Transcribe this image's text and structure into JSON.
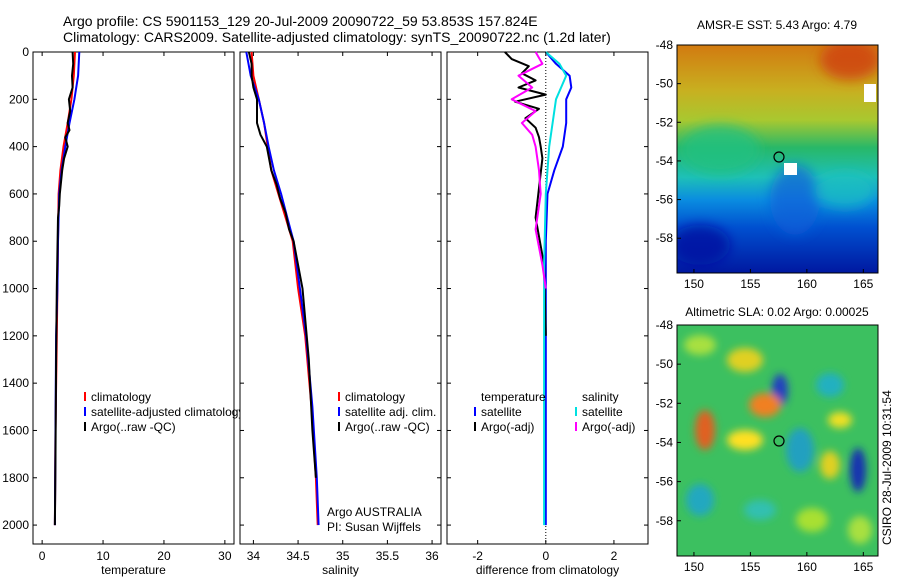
{
  "title": {
    "line1": "Argo profile: CS 5901153_129 20-Jul-2009 20090722_59 53.853S 157.824E",
    "line2": "Climatology: CARS2009. Satellite-adjusted climatology: synTS_20090722.nc (1.2d later)"
  },
  "colors": {
    "climatology": "#ff0000",
    "satellite": "#0000ff",
    "argo": "#000000",
    "sat_salinity": "#00e0e0",
    "argo_adj_salinity": "#ff00ff",
    "zero_line": "#000000"
  },
  "credit": "CSIRO 28-Jul-2009 10:31:54",
  "chart_data": [
    {
      "type": "line",
      "name": "temperature-profile",
      "xlabel": "temperature",
      "xlim": [
        -1.5,
        31.5
      ],
      "xticks": [
        "0",
        "10",
        "20",
        "30"
      ],
      "xtick_values": [
        0,
        10,
        20,
        30
      ],
      "ylim": [
        0,
        2080
      ],
      "yticks": [
        "0",
        "200",
        "400",
        "600",
        "800",
        "1000",
        "1200",
        "1400",
        "1600",
        "1800",
        "2000"
      ],
      "ytick_values": [
        0,
        200,
        400,
        600,
        800,
        1000,
        1200,
        1400,
        1600,
        1800,
        2000
      ],
      "legend": [
        "climatology",
        "satellite-adjusted climatology",
        "Argo(..raw -QC)"
      ],
      "series": [
        {
          "name": "climatology",
          "color": "#ff0000",
          "x": [
            5.4,
            5.2,
            4.8,
            4.2,
            3.5,
            3.0,
            2.7,
            2.6,
            2.5,
            2.4,
            2.2,
            2.1
          ],
          "y": [
            0,
            100,
            200,
            300,
            400,
            500,
            600,
            800,
            1000,
            1200,
            1600,
            2000
          ]
        },
        {
          "name": "satellite",
          "color": "#0000ff",
          "x": [
            6.1,
            5.9,
            5.3,
            4.5,
            3.8,
            3.2,
            2.8,
            2.6,
            2.5,
            2.3,
            2.2,
            2.1
          ],
          "y": [
            0,
            100,
            200,
            300,
            400,
            500,
            600,
            800,
            1000,
            1200,
            1600,
            2000
          ]
        },
        {
          "name": "argo",
          "color": "#000000",
          "x": [
            5.0,
            5.1,
            4.9,
            5.0,
            4.4,
            4.6,
            4.2,
            4.5,
            3.8,
            4.2,
            3.6,
            3.3,
            3.1,
            2.9,
            2.8,
            2.6,
            2.4,
            2.3,
            2.2,
            2.1
          ],
          "y": [
            0,
            50,
            100,
            150,
            200,
            250,
            300,
            330,
            360,
            400,
            450,
            500,
            550,
            600,
            650,
            700,
            1000,
            1300,
            1700,
            2000
          ]
        }
      ]
    },
    {
      "type": "line",
      "name": "salinity-profile",
      "xlabel": "salinity",
      "xlim": [
        33.85,
        36.1
      ],
      "xticks": [
        "34",
        "34.5",
        "35",
        "35.5",
        "36"
      ],
      "xtick_values": [
        34,
        34.5,
        35,
        35.5,
        36
      ],
      "ylim": [
        0,
        2080
      ],
      "legend": [
        "climatology",
        "satellite adj. clim.",
        "Argo(..raw -QC)"
      ],
      "annotation": [
        "Argo AUSTRALIA",
        "PI: Susan Wijffels"
      ],
      "series": [
        {
          "name": "climatology",
          "color": "#ff0000",
          "x": [
            33.98,
            34.0,
            34.06,
            34.12,
            34.16,
            34.2,
            34.28,
            34.36,
            34.44,
            34.5,
            34.58,
            34.65,
            34.7,
            34.72
          ],
          "y": [
            0,
            100,
            200,
            300,
            400,
            500,
            600,
            700,
            800,
            1000,
            1200,
            1500,
            1800,
            2000
          ]
        },
        {
          "name": "satellite",
          "color": "#0000ff",
          "x": [
            33.92,
            33.97,
            34.06,
            34.12,
            34.17,
            34.23,
            34.31,
            34.38,
            34.45,
            34.52,
            34.59,
            34.66,
            34.71,
            34.73
          ],
          "y": [
            0,
            100,
            200,
            300,
            400,
            500,
            600,
            700,
            800,
            1000,
            1200,
            1500,
            1800,
            2000
          ]
        },
        {
          "name": "argo",
          "color": "#000000",
          "x": [
            33.95,
            33.98,
            33.98,
            34.0,
            34.04,
            34.04,
            34.08,
            34.15,
            34.2,
            34.26,
            34.3,
            34.36,
            34.4,
            34.45,
            34.55,
            34.62,
            34.66,
            34.7
          ],
          "y": [
            0,
            50,
            100,
            150,
            200,
            300,
            350,
            400,
            500,
            560,
            620,
            680,
            750,
            800,
            1000,
            1300,
            1600,
            1800
          ]
        }
      ]
    },
    {
      "type": "line",
      "name": "difference-profile",
      "xlabel": "difference from climatology",
      "xlim": [
        -2.9,
        3.0
      ],
      "xticks": [
        "-2",
        "0",
        "2"
      ],
      "xtick_values": [
        -2,
        0,
        2
      ],
      "ylim": [
        0,
        2080
      ],
      "legend_temperature": {
        "header": "temperature",
        "items": [
          "satellite",
          "Argo(-adj)"
        ]
      },
      "legend_salinity": {
        "header": "salinity",
        "items": [
          "satellite",
          "Argo(-adj)"
        ]
      },
      "series": [
        {
          "name": "temperature satellite",
          "color": "#0000ff",
          "x": [
            0.0,
            0.3,
            0.7,
            0.75,
            0.6,
            0.6,
            0.5,
            0.25,
            0.05,
            0.0,
            0.0,
            0.0,
            0.0
          ],
          "y": [
            0,
            50,
            100,
            150,
            200,
            300,
            400,
            500,
            600,
            800,
            1200,
            1600,
            2000
          ]
        },
        {
          "name": "temperature Argo(-adj)",
          "color": "#000000",
          "x": [
            -1.2,
            -1.0,
            -0.5,
            -0.7,
            -0.3,
            -0.8,
            0.0,
            -0.9,
            -0.2,
            -0.6,
            -0.3,
            -0.2,
            -0.15,
            -0.1,
            -0.3,
            -0.05,
            0.0
          ],
          "y": [
            0,
            30,
            60,
            90,
            120,
            150,
            180,
            210,
            240,
            280,
            320,
            360,
            400,
            450,
            700,
            900,
            1200
          ]
        },
        {
          "name": "salinity satellite",
          "color": "#00e0e0",
          "x": [
            0.0,
            0.4,
            0.6,
            0.45,
            0.3,
            0.2,
            0.1,
            0.0,
            -0.05,
            -0.05,
            -0.05
          ],
          "y": [
            0,
            50,
            100,
            150,
            200,
            300,
            400,
            600,
            900,
            1400,
            2000
          ]
        },
        {
          "name": "salinity Argo(-adj)",
          "color": "#ff00ff",
          "x": [
            -0.3,
            -0.1,
            -0.8,
            -0.4,
            -1.0,
            -0.3,
            -0.7,
            -0.4,
            -0.3,
            -0.2,
            -0.15,
            -0.3,
            -0.1,
            0.0
          ],
          "y": [
            0,
            50,
            100,
            150,
            200,
            250,
            300,
            350,
            400,
            500,
            600,
            750,
            900,
            1000
          ]
        }
      ]
    },
    {
      "type": "heatmap",
      "name": "amsr-e-sst-map",
      "title": "AMSR-E SST: 5.43 Argo: 4.79",
      "xlim": [
        148.5,
        166.3
      ],
      "ylim": [
        -59.8,
        -48.0
      ],
      "xticks": [
        "150",
        "155",
        "160",
        "165"
      ],
      "xtick_values": [
        150,
        155,
        160,
        165
      ],
      "yticks": [
        "-48",
        "-50",
        "-52",
        "-54",
        "-56",
        "-58"
      ],
      "ytick_values": [
        -48,
        -50,
        -52,
        -54,
        -56,
        -58
      ],
      "marker": {
        "lon": 157.824,
        "lat": -53.853
      },
      "description": "sea surface temperature field, warm (orange) in the north cooling to blue in the south"
    },
    {
      "type": "heatmap",
      "name": "altimetric-sla-map",
      "title": "Altimetric SLA: 0.02 Argo: 0.00025",
      "xlim": [
        148.5,
        166.3
      ],
      "ylim": [
        -59.8,
        -48.0
      ],
      "xticks": [
        "150",
        "155",
        "160",
        "165"
      ],
      "xtick_values": [
        150,
        155,
        160,
        165
      ],
      "yticks": [
        "-48",
        "-50",
        "-52",
        "-54",
        "-56",
        "-58"
      ],
      "ytick_values": [
        -48,
        -50,
        -52,
        -54,
        -56,
        -58
      ],
      "marker": {
        "lon": 157.824,
        "lat": -53.853
      },
      "description": "sea level anomaly field, mostly green with scattered blue and orange eddies"
    }
  ]
}
